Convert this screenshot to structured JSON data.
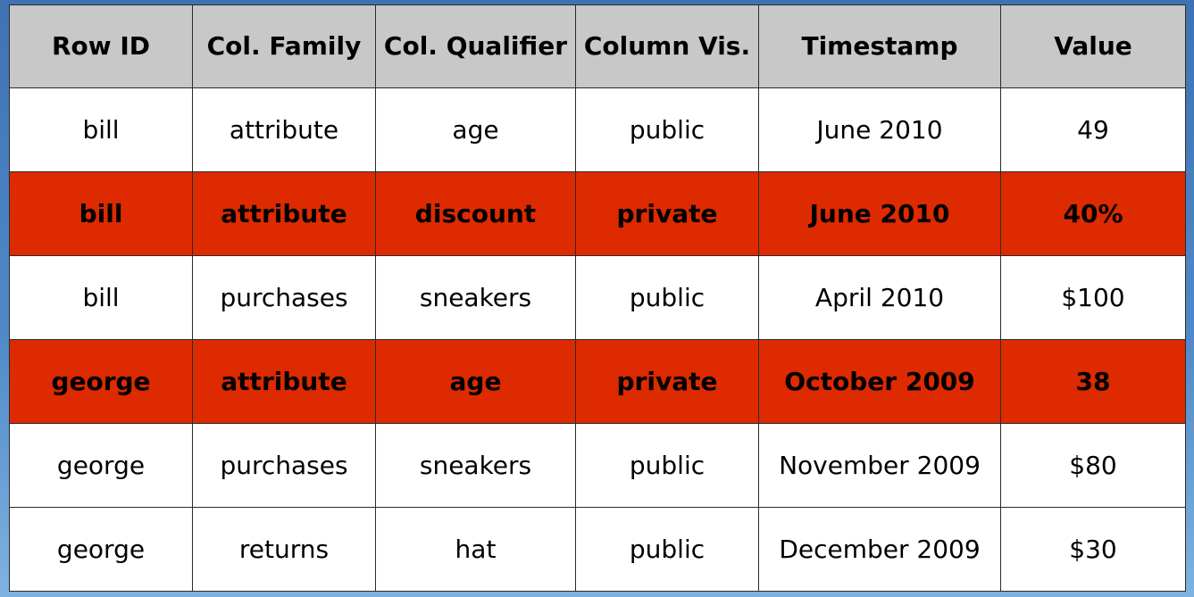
{
  "table": {
    "headers": [
      "Row ID",
      "Col. Family",
      "Col. Qualifier",
      "Column Vis.",
      "Timestamp",
      "Value"
    ],
    "rows": [
      {
        "visibility": "public",
        "cells": [
          "bill",
          "attribute",
          "age",
          "public",
          "June 2010",
          "49"
        ]
      },
      {
        "visibility": "private",
        "cells": [
          "bill",
          "attribute",
          "discount",
          "private",
          "June 2010",
          "40%"
        ]
      },
      {
        "visibility": "public",
        "cells": [
          "bill",
          "purchases",
          "sneakers",
          "public",
          "April 2010",
          "$100"
        ]
      },
      {
        "visibility": "private",
        "cells": [
          "george",
          "attribute",
          "age",
          "private",
          "October 2009",
          "38"
        ]
      },
      {
        "visibility": "public",
        "cells": [
          "george",
          "purchases",
          "sneakers",
          "public",
          "November 2009",
          "$80"
        ]
      },
      {
        "visibility": "public",
        "cells": [
          "george",
          "returns",
          "hat",
          "public",
          "December 2009",
          "$30"
        ]
      }
    ]
  },
  "colors": {
    "header_bg": "#c8c8c8",
    "private_row_bg": "#dd2a00",
    "public_row_bg": "#ffffff",
    "page_bg": "#4f88c8"
  }
}
